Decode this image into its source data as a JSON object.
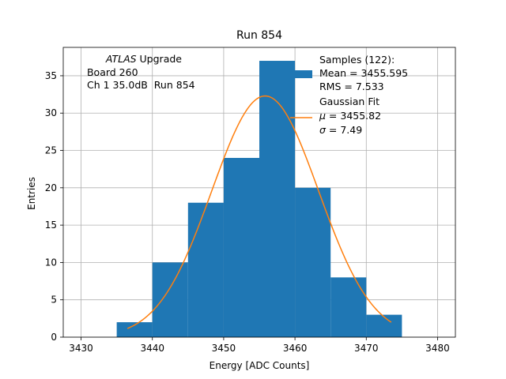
{
  "chart_data": {
    "type": "bar",
    "title": "Run 854",
    "xlabel": "Energy [ADC Counts]",
    "ylabel": "Entries",
    "xlim": [
      3427.5,
      3482.5
    ],
    "ylim": [
      0,
      38.8
    ],
    "xticks": [
      3430,
      3440,
      3450,
      3460,
      3470,
      3480
    ],
    "yticks": [
      0,
      5,
      10,
      15,
      20,
      25,
      30,
      35
    ],
    "grid": true,
    "bar_color": "#1f77b4",
    "fit_color": "#ff7f0e",
    "histogram": {
      "name": "Samples (122):",
      "bin_edges": [
        3435,
        3440,
        3445,
        3450,
        3455,
        3460,
        3465,
        3470,
        3475
      ],
      "counts": [
        2,
        10,
        18,
        24,
        37,
        20,
        8,
        3
      ]
    },
    "fit": {
      "name": "Gaussian Fit",
      "mu": 3455.82,
      "sigma": 7.49,
      "amplitude": 32.3,
      "x_range": [
        3436.5,
        3473.5
      ]
    },
    "legend": {
      "placement": "top-right",
      "hist_lines": [
        "Samples (122):",
        "Mean = 3455.595",
        "RMS = 7.533"
      ],
      "fit_title": "Gaussian Fit",
      "fit_mu_symbol": "μ",
      "fit_mu_value": " = 3455.82",
      "fit_sigma_symbol": "σ",
      "fit_sigma_value": " = 7.49"
    },
    "annotation": {
      "placement": "top-left",
      "italic_word": "ATLAS",
      "first_line_rest": " Upgrade",
      "lines": [
        " Board 260",
        " Ch 1 35.0dB  Run 854"
      ]
    }
  }
}
